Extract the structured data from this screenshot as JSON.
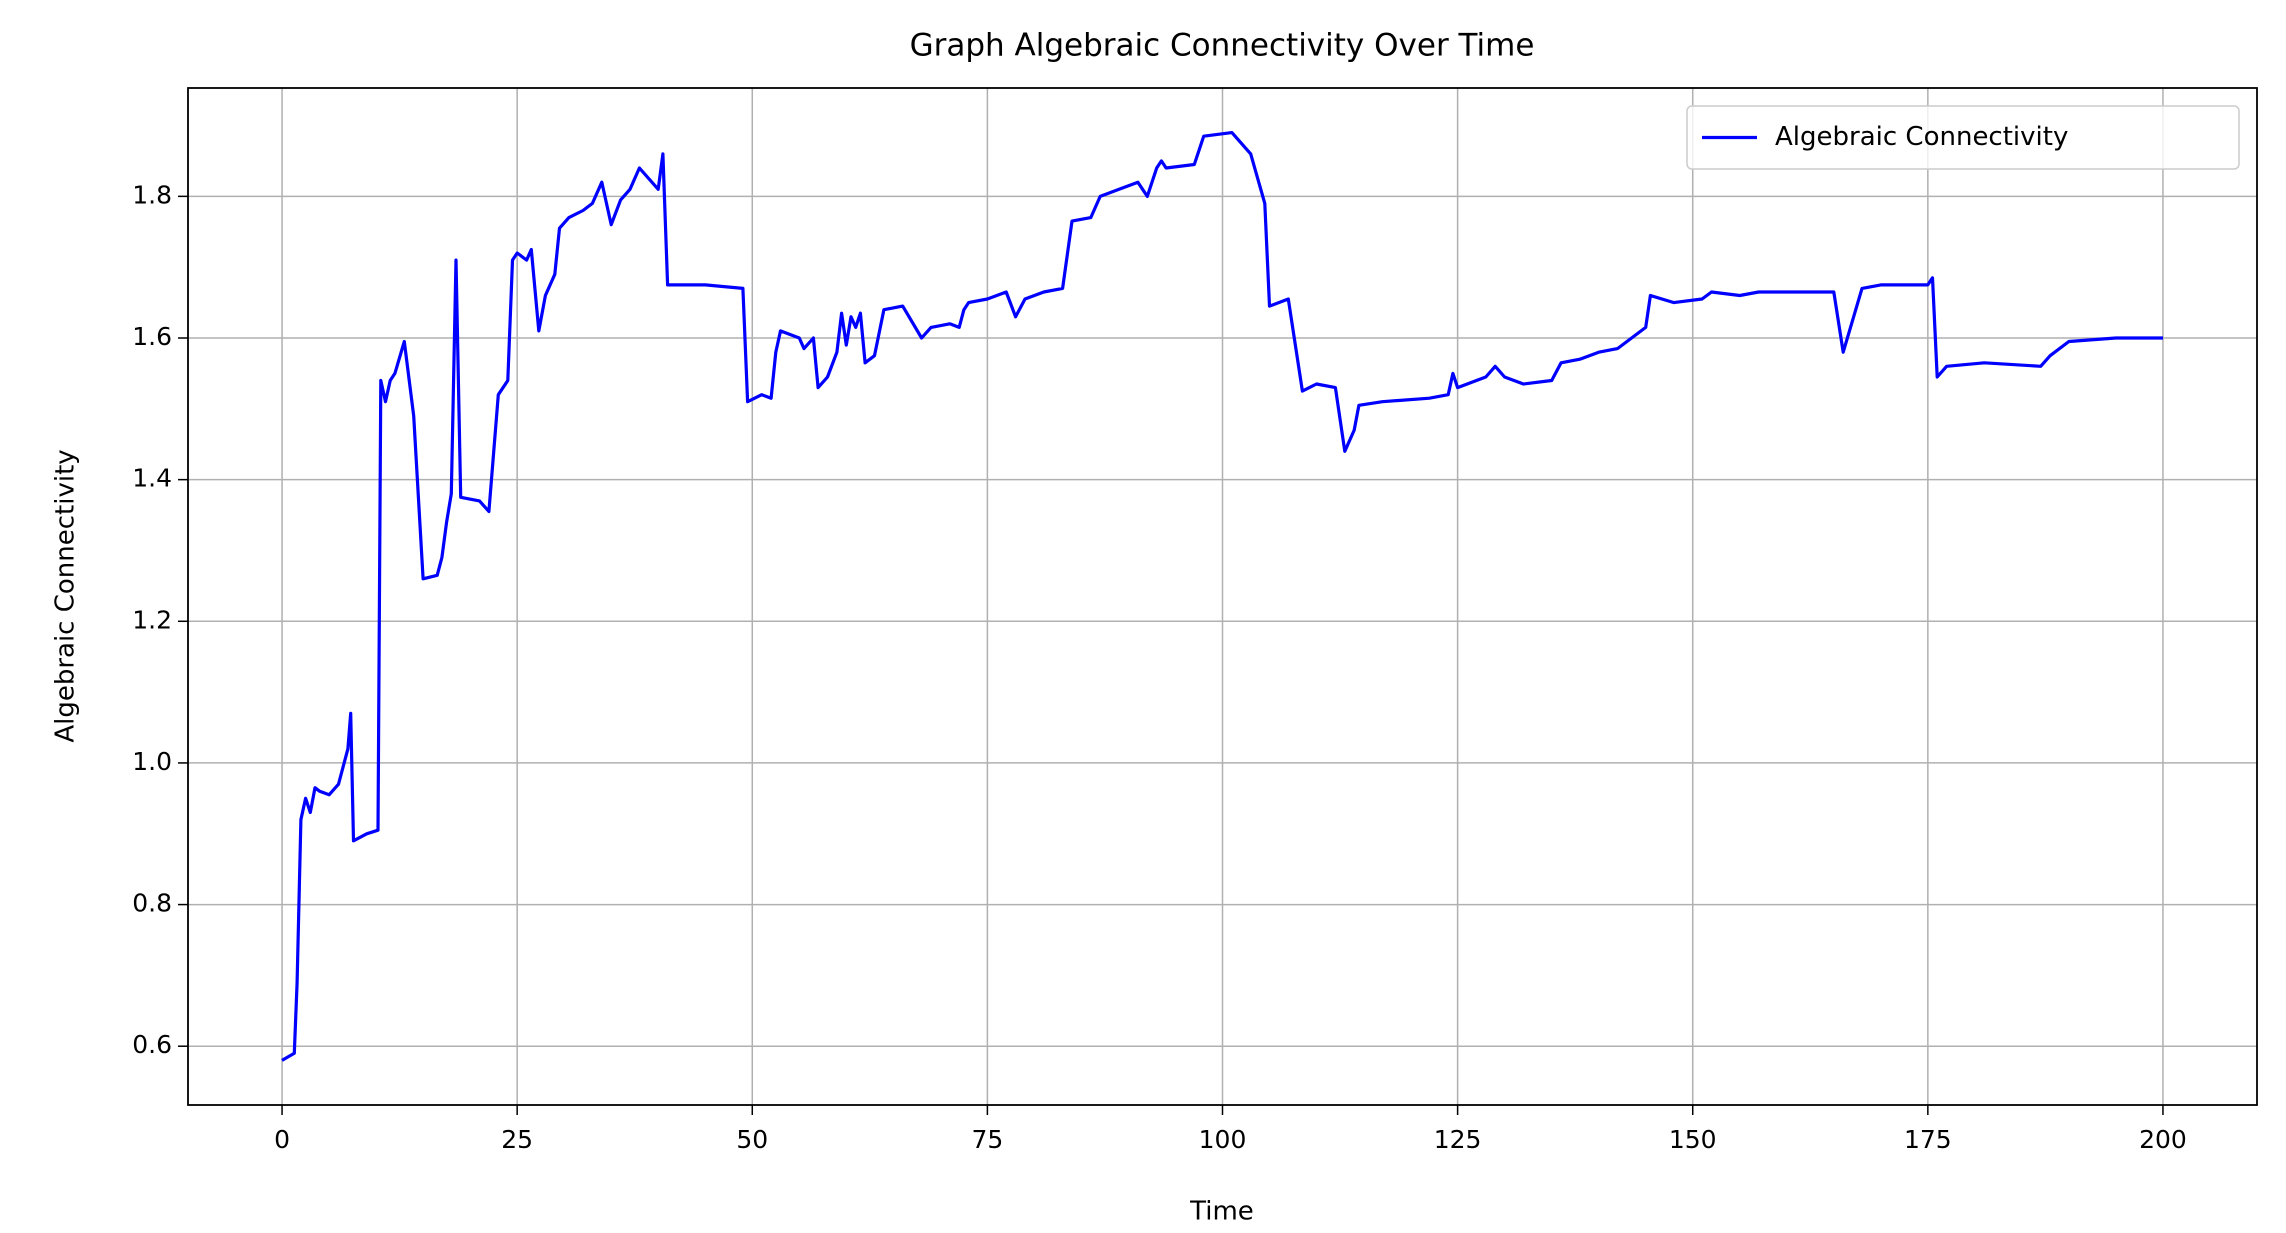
{
  "chart_data": {
    "type": "line",
    "title": "Graph Algebraic Connectivity Over Time",
    "x_label": "Time",
    "y_label": "Algebraic Connectivity",
    "xlim": [
      -10,
      210
    ],
    "ylim": [
      0.517,
      1.953
    ],
    "xticks": [
      0,
      25,
      50,
      75,
      100,
      125,
      150,
      175,
      200
    ],
    "yticks": [
      0.6,
      0.8,
      {
        "value": 1,
        "label": "1.0"
      },
      1.2,
      1.4,
      1.6,
      1.8
    ],
    "grid": true,
    "legend": "upper right",
    "x": [
      0,
      1.3,
      1.6,
      2,
      2.5,
      3,
      3.5,
      4,
      5,
      6,
      7,
      7.3,
      7.6,
      9,
      10.2,
      10.5,
      11,
      11.5,
      12,
      13,
      14,
      15,
      16.5,
      17,
      17.5,
      18,
      18.5,
      19,
      21,
      22,
      23,
      24,
      24.5,
      25,
      26,
      26.5,
      27.3,
      28,
      29,
      29.5,
      30.5,
      32,
      33,
      34,
      35,
      36,
      37,
      38,
      40,
      40.5,
      41,
      45,
      49,
      49.5,
      51,
      52,
      52.5,
      53,
      55,
      55.5,
      56.5,
      57,
      58,
      59,
      59.5,
      60,
      60.5,
      61,
      61.5,
      62,
      63,
      64,
      66,
      68,
      69,
      71,
      72,
      72.5,
      73,
      75,
      77,
      78,
      79,
      80,
      81,
      83,
      84,
      86,
      87,
      89,
      91,
      92,
      93,
      93.5,
      94,
      97,
      98,
      101,
      103,
      104.5,
      105,
      107,
      108.5,
      110,
      112,
      113,
      114,
      114.5,
      117,
      122,
      124,
      124.5,
      125,
      128,
      129,
      130,
      132,
      135,
      136,
      138,
      140,
      142,
      145,
      145.5,
      148,
      151,
      152,
      155,
      157,
      165,
      166,
      168,
      170,
      175,
      175.5,
      176,
      177,
      181,
      187,
      188,
      190,
      195,
      200
    ],
    "series": [
      {
        "name": "Algebraic Connectivity",
        "color": "#0000ff",
        "values": [
          0.58,
          0.59,
          0.69,
          0.92,
          0.95,
          0.93,
          0.965,
          0.96,
          0.955,
          0.97,
          1.02,
          1.07,
          0.89,
          0.9,
          0.905,
          1.54,
          1.51,
          1.54,
          1.55,
          1.595,
          1.49,
          1.26,
          1.265,
          1.29,
          1.34,
          1.38,
          1.71,
          1.375,
          1.37,
          1.355,
          1.52,
          1.54,
          1.71,
          1.72,
          1.71,
          1.725,
          1.61,
          1.66,
          1.69,
          1.755,
          1.77,
          1.78,
          1.79,
          1.82,
          1.76,
          1.795,
          1.81,
          1.84,
          1.81,
          1.86,
          1.675,
          1.675,
          1.67,
          1.51,
          1.52,
          1.515,
          1.58,
          1.61,
          1.6,
          1.585,
          1.6,
          1.53,
          1.545,
          1.58,
          1.635,
          1.59,
          1.63,
          1.615,
          1.635,
          1.565,
          1.575,
          1.64,
          1.645,
          1.6,
          1.615,
          1.62,
          1.615,
          1.64,
          1.65,
          1.655,
          1.665,
          1.63,
          1.655,
          1.66,
          1.665,
          1.67,
          1.765,
          1.77,
          1.8,
          1.81,
          1.82,
          1.8,
          1.84,
          1.85,
          1.84,
          1.845,
          1.885,
          1.89,
          1.86,
          1.79,
          1.645,
          1.655,
          1.525,
          1.535,
          1.53,
          1.44,
          1.47,
          1.505,
          1.51,
          1.515,
          1.52,
          1.55,
          1.53,
          1.545,
          1.56,
          1.545,
          1.535,
          1.54,
          1.565,
          1.57,
          1.58,
          1.585,
          1.615,
          1.66,
          1.65,
          1.655,
          1.665,
          1.66,
          1.665,
          1.665,
          1.58,
          1.67,
          1.675,
          1.675,
          1.685,
          1.545,
          1.56,
          1.565,
          1.56,
          1.575,
          1.595,
          1.6,
          1.6
        ]
      }
    ]
  }
}
